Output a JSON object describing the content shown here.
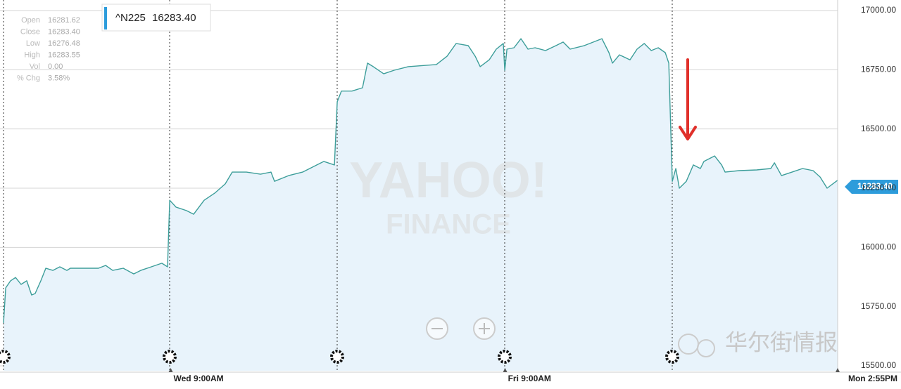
{
  "chart_data": {
    "type": "line",
    "series": [
      {
        "name": "^N225",
        "color": "#3d9e9a",
        "fill": "#e8f3fb",
        "values": [
          15681,
          15829,
          15859,
          15873,
          15844,
          15859,
          15799,
          15805,
          15859,
          15912,
          15903,
          15918,
          15903,
          15912,
          15912,
          15912,
          15924,
          15903,
          15912,
          15888,
          15903,
          15918,
          15933,
          15918,
          16199,
          16170,
          16155,
          16140,
          16199,
          16229,
          16268,
          16318,
          16318,
          16309,
          16318,
          16279,
          16303,
          16318,
          16348,
          16363,
          16348,
          16615,
          16660,
          16660,
          16674,
          16778,
          16763,
          16733,
          16748,
          16763,
          16772,
          16807,
          16861,
          16852,
          16807,
          16763,
          16792,
          16837,
          16861,
          16748,
          16837,
          16843,
          16881,
          16837,
          16843,
          16831,
          16852,
          16867,
          16837,
          16852,
          16881,
          16822,
          16778,
          16813,
          16792,
          16837,
          16861,
          16831,
          16843,
          16822,
          16778,
          16279,
          16333,
          16250,
          16279,
          16348,
          16333,
          16363,
          16386,
          16348,
          16318,
          16324,
          16327,
          16333,
          16357,
          16303,
          16318,
          16333,
          16324,
          16297,
          16250,
          16283.4
        ]
      }
    ],
    "x": [
      0,
      0.013,
      0.042,
      0.072,
      0.105,
      0.139,
      0.168,
      0.189,
      0.223,
      0.253,
      0.295,
      0.337,
      0.379,
      0.4,
      0.484,
      0.568,
      0.611,
      0.653,
      0.716,
      0.779,
      0.821,
      0.884,
      0.947,
      0.981,
      0.994,
      1.032,
      1.095,
      1.137,
      1.2,
      1.263,
      1.326,
      1.368,
      1.453,
      1.537,
      1.6,
      1.621,
      1.705,
      1.789,
      1.874,
      1.916,
      1.979,
      1.996,
      2.021,
      2.084,
      2.147,
      2.177,
      2.211,
      2.274,
      2.337,
      2.421,
      2.589,
      2.653,
      2.707,
      2.779,
      2.821,
      2.851,
      2.905,
      2.947,
      2.989,
      2.998,
      3.011,
      3.053,
      3.095,
      3.137,
      3.179,
      3.242,
      3.305,
      3.347,
      3.389,
      3.474,
      3.579,
      3.621,
      3.642,
      3.684,
      3.747,
      3.789,
      3.832,
      3.874,
      3.916,
      3.958,
      3.979,
      4.0,
      4.021,
      4.042,
      4.084,
      4.126,
      4.168,
      4.189,
      4.253,
      4.295,
      4.316,
      4.4,
      4.505,
      4.589,
      4.611,
      4.653,
      4.716,
      4.779,
      4.842,
      4.884,
      4.926,
      4.989
    ],
    "xlim": [
      0,
      4.989
    ],
    "xticks": [
      {
        "value": 1,
        "label": "Wed 9:00AM"
      },
      {
        "value": 3,
        "label": "Fri 9:00AM"
      },
      {
        "value": 4.989,
        "label": "Mon 2:55PM"
      }
    ],
    "ylim": [
      15500,
      17000
    ],
    "yticks": [
      {
        "value": 15500,
        "label": "15500.00"
      },
      {
        "value": 15750,
        "label": "15750.00"
      },
      {
        "value": 16000,
        "label": "16000.00"
      },
      {
        "value": 16250,
        "label": "16250.00"
      },
      {
        "value": 16500,
        "label": "16500.00"
      },
      {
        "value": 16750,
        "label": "16750.00"
      },
      {
        "value": 17000,
        "label": "17000.00"
      }
    ],
    "grid": true,
    "last_label": "16283.40",
    "legend_label": "16283.40",
    "panel": [
      {
        "label": "Open",
        "value": "16281.62"
      },
      {
        "label": "Close",
        "value": "16283.40"
      },
      {
        "label": "Low",
        "value": "16276.48"
      },
      {
        "label": "High",
        "value": "16283.55"
      },
      {
        "label": "Vol",
        "value": "0.00"
      },
      {
        "label": "% Chg",
        "value": "3.58%"
      }
    ],
    "watermark": [
      "YAHOO!",
      "FINANCE"
    ],
    "source_watermark": "华尔街情报"
  }
}
